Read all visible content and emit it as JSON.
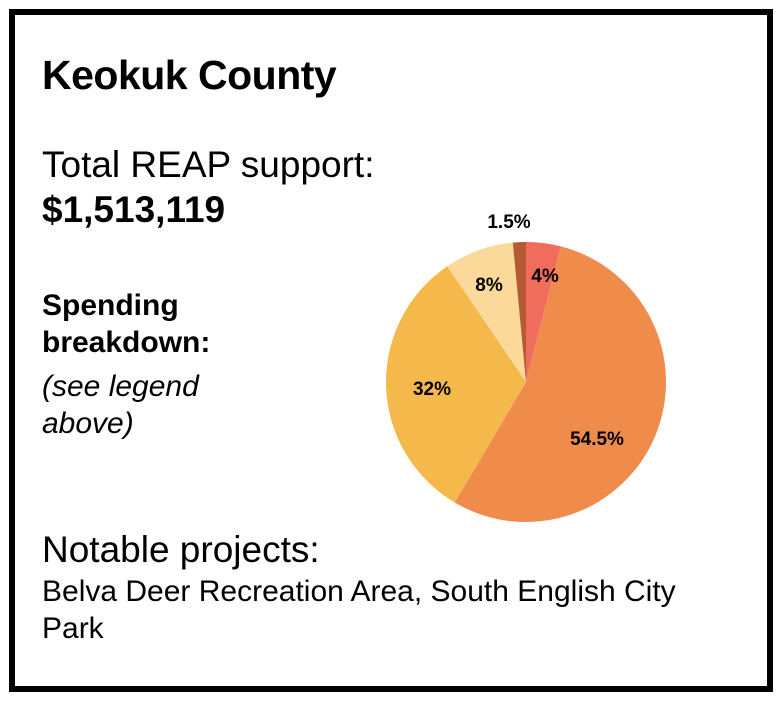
{
  "title": "Keokuk County",
  "total": {
    "label": "Total REAP support:",
    "value": "$1,513,119"
  },
  "spending": {
    "label": "Spending breakdown:",
    "note": "(see legend above)"
  },
  "notable": {
    "label": "Notable projects:",
    "text": "Belva Deer Recreation Area, South English City Park"
  },
  "chart_data": {
    "type": "pie",
    "title": "",
    "legend": "none",
    "slices": [
      {
        "label": "4%",
        "value": 4,
        "color": "#f06c5d"
      },
      {
        "label": "54.5%",
        "value": 54.5,
        "color": "#ef8c4c"
      },
      {
        "label": "32%",
        "value": 32,
        "color": "#f5b84a"
      },
      {
        "label": "8%",
        "value": 8,
        "color": "#fad99a"
      },
      {
        "label": "1.5%",
        "value": 1.5,
        "color": "#b55a33"
      }
    ]
  }
}
